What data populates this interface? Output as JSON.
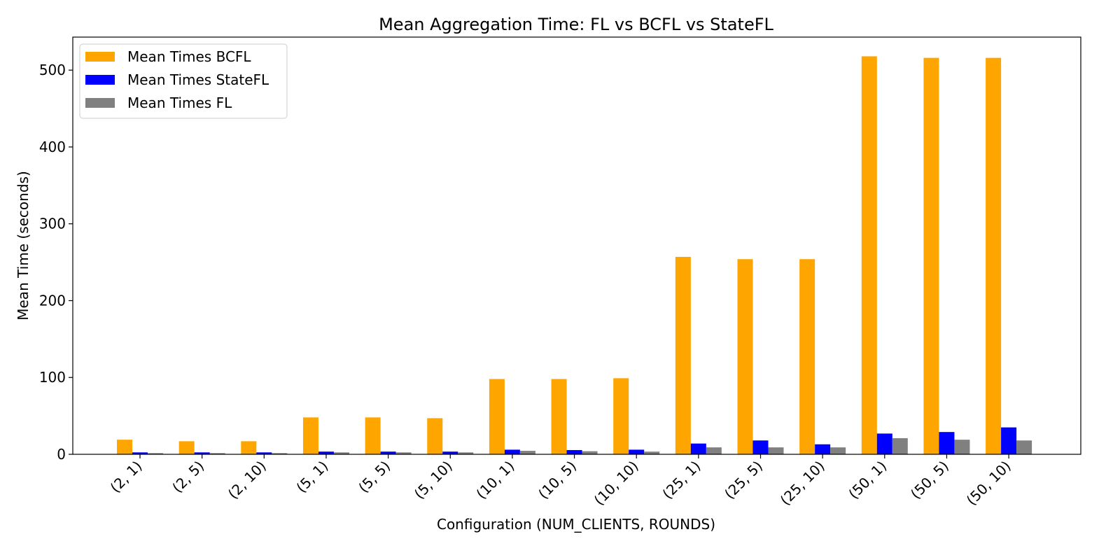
{
  "chart_data": {
    "type": "bar",
    "title": "Mean Aggregation Time: FL vs BCFL vs StateFL",
    "xlabel": "Configuration (NUM_CLIENTS, ROUNDS)",
    "ylabel": "Mean Time (seconds)",
    "ylim": [
      0,
      543
    ],
    "yticks": [
      0,
      100,
      200,
      300,
      400,
      500
    ],
    "yticks_labels": [
      "0",
      "100",
      "200",
      "300",
      "400",
      "500"
    ],
    "grid": false,
    "legend_position": "top-left",
    "categories": [
      "(2, 1)",
      "(2, 5)",
      "(2, 10)",
      "(5, 1)",
      "(5, 5)",
      "(5, 10)",
      "(10, 1)",
      "(10, 5)",
      "(10, 10)",
      "(25, 1)",
      "(25, 5)",
      "(25, 10)",
      "(50, 1)",
      "(50, 5)",
      "(50, 10)"
    ],
    "series": [
      {
        "name": "Mean Times BCFL",
        "color": "#ffa500",
        "values": [
          19,
          17,
          17,
          48,
          48,
          47,
          98,
          98,
          99,
          257,
          254,
          254,
          518,
          516,
          516
        ]
      },
      {
        "name": "Mean Times StateFL",
        "color": "#0000ff",
        "values": [
          2.5,
          2.5,
          2.5,
          3.5,
          3.5,
          3.5,
          6,
          5.5,
          6,
          14,
          18,
          13,
          27,
          29,
          35
        ]
      },
      {
        "name": "Mean Times FL",
        "color": "#808080",
        "values": [
          1.5,
          1.5,
          1.5,
          2.5,
          2.5,
          2.5,
          4.5,
          4,
          3.5,
          9,
          9,
          9,
          21,
          19,
          18
        ]
      }
    ]
  }
}
